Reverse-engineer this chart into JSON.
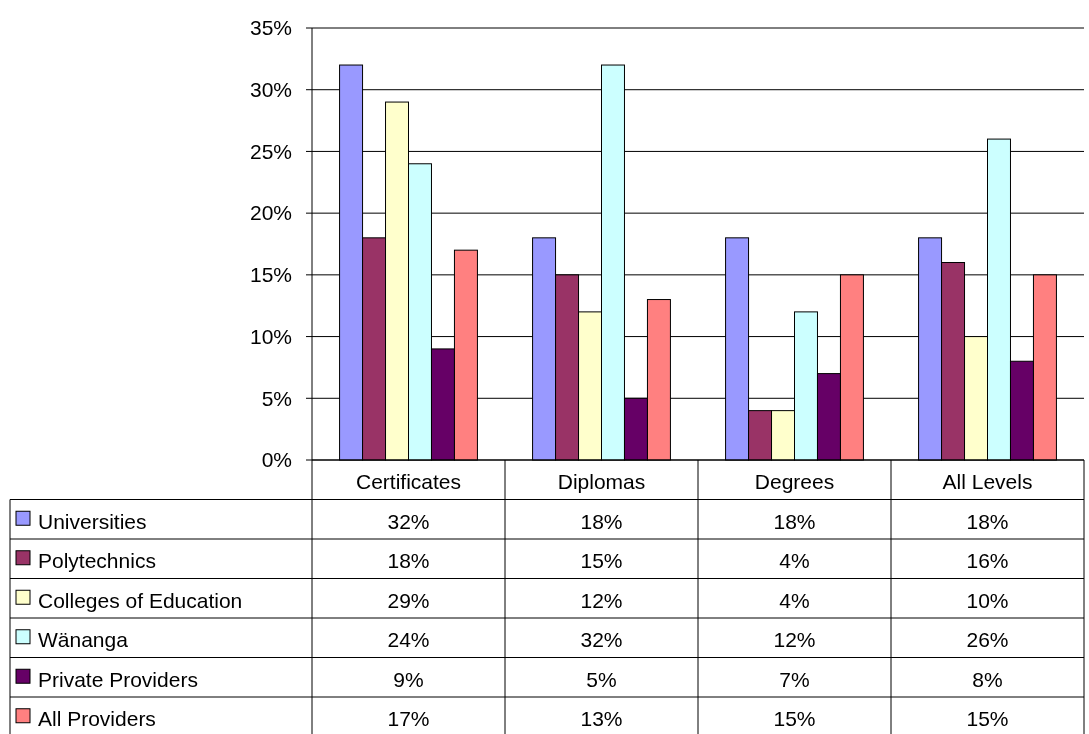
{
  "chart_data": {
    "type": "bar",
    "categories": [
      "Certificates",
      "Diplomas",
      "Degrees",
      "All Levels"
    ],
    "series": [
      {
        "name": "Universities",
        "color": "#9999ff",
        "values": [
          32,
          18,
          18,
          18
        ],
        "value_labels": [
          "32%",
          "18%",
          "18%",
          "18%"
        ]
      },
      {
        "name": "Polytechnics",
        "color": "#993366",
        "values": [
          18,
          15,
          4,
          16
        ],
        "value_labels": [
          "18%",
          "15%",
          "4%",
          "16%"
        ]
      },
      {
        "name": "Colleges of Education",
        "color": "#ffffcc",
        "values": [
          29,
          12,
          4,
          10
        ],
        "value_labels": [
          "29%",
          "12%",
          "4%",
          "10%"
        ]
      },
      {
        "name": "Wänanga",
        "color": "#ccffff",
        "values": [
          24,
          32,
          12,
          26
        ],
        "value_labels": [
          "24%",
          "32%",
          "12%",
          "26%"
        ]
      },
      {
        "name": "Private Providers",
        "color": "#660066",
        "values": [
          9,
          5,
          7,
          8
        ],
        "value_labels": [
          "9%",
          "5%",
          "7%",
          "8%"
        ]
      },
      {
        "name": "All Providers",
        "color": "#ff8080",
        "values": [
          17,
          13,
          15,
          15
        ],
        "value_labels": [
          "17%",
          "13%",
          "15%",
          "15%"
        ]
      }
    ],
    "ylim": [
      0,
      35
    ],
    "yticks": [
      {
        "value": 0,
        "label": "0%"
      },
      {
        "value": 5,
        "label": "5%"
      },
      {
        "value": 10,
        "label": "10%"
      },
      {
        "value": 15,
        "label": "15%"
      },
      {
        "value": 20,
        "label": "20%"
      },
      {
        "value": 25,
        "label": "25%"
      },
      {
        "value": 30,
        "label": "30%"
      },
      {
        "value": 35,
        "label": "35%"
      }
    ],
    "grid": "y",
    "legend": "bottom"
  }
}
